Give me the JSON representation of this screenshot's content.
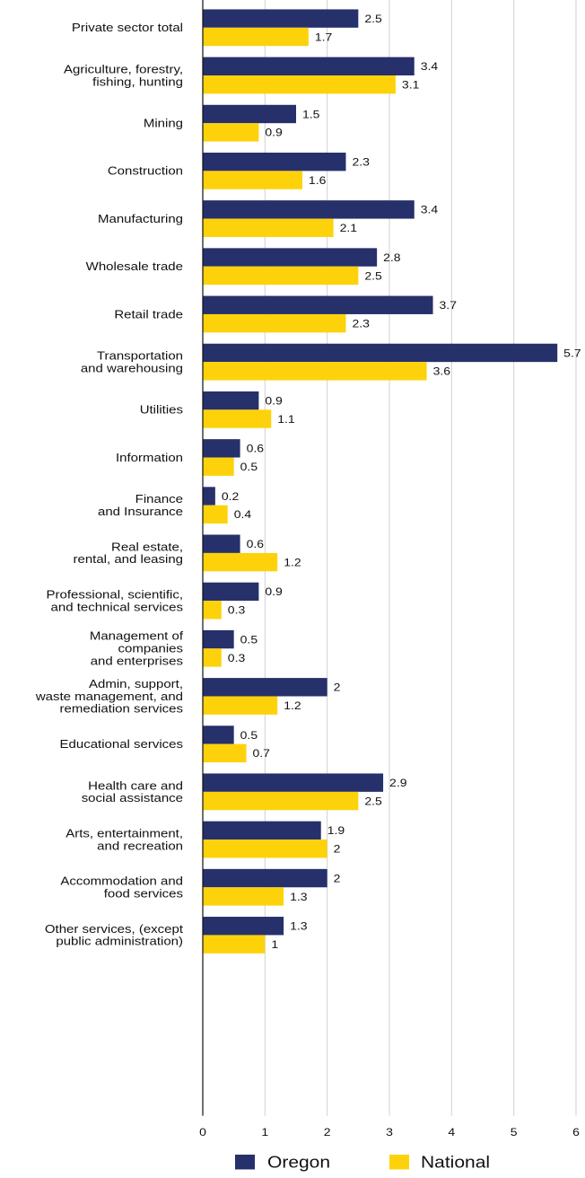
{
  "chart_data": {
    "type": "bar",
    "orientation": "horizontal",
    "title": "",
    "xlabel": "",
    "ylabel": "",
    "xlim": [
      0,
      6
    ],
    "xticks": [
      0,
      1,
      2,
      3,
      4,
      5,
      6
    ],
    "grid": "vertical",
    "legend_position": "bottom",
    "categories": [
      "Private sector total",
      "Agriculture, forestry,\nfishing, hunting",
      "Mining",
      "Construction",
      "Manufacturing",
      "Wholesale trade",
      "Retail trade",
      "Transportation\nand warehousing",
      "Utilities",
      "Information",
      "Finance\nand Insurance",
      "Real estate,\nrental, and leasing",
      "Professional, scientific,\nand technical services",
      "Management of\ncompanies\nand enterprises",
      "Admin, support,\nwaste management, and\nremediation services",
      "Educational services",
      "Health care and\nsocial assistance",
      "Arts, entertainment,\nand recreation",
      "Accommodation and\nfood services",
      "Other services, (except\npublic administration)"
    ],
    "series": [
      {
        "name": "Oregon",
        "color": "#26306b",
        "values": [
          2.5,
          3.4,
          1.5,
          2.3,
          3.4,
          2.8,
          3.7,
          5.7,
          0.9,
          0.6,
          0.2,
          0.6,
          0.9,
          0.5,
          2,
          0.5,
          2.9,
          1.9,
          2,
          1.3
        ],
        "labels": [
          "2.5",
          "3.4",
          "1.5",
          "2.3",
          "3.4",
          "2.8",
          "3.7",
          "5.7",
          "0.9",
          "0.6",
          "0.2",
          "0.6",
          "0.9",
          "0.5",
          "2",
          "0.5",
          "2.9",
          "1.9",
          "2",
          "1.3"
        ]
      },
      {
        "name": "National",
        "color": "#fdd20b",
        "values": [
          1.7,
          3.1,
          0.9,
          1.6,
          2.1,
          2.5,
          2.3,
          3.6,
          1.1,
          0.5,
          0.4,
          1.2,
          0.3,
          0.3,
          1.2,
          0.7,
          2.5,
          2,
          1.3,
          1
        ],
        "labels": [
          "1.7",
          "3.1",
          "0.9",
          "1.6",
          "2.1",
          "2.5",
          "2.3",
          "3.6",
          "1.1",
          "0.5",
          "0.4",
          "1.2",
          "0.3",
          "0.3",
          "1.2",
          "0.7",
          "2.5",
          "2",
          "1.3",
          "1"
        ]
      }
    ]
  }
}
